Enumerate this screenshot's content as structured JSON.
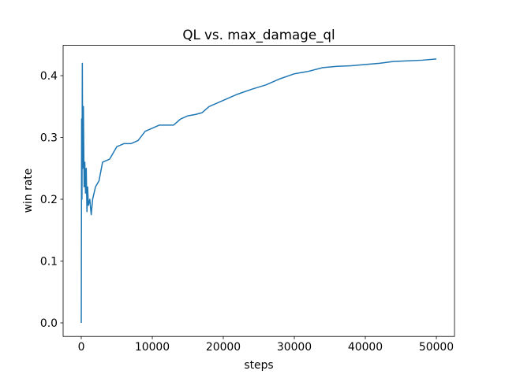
{
  "chart_data": {
    "type": "line",
    "title": "QL vs. max_damage_ql",
    "xlabel": "steps",
    "ylabel": "win rate",
    "x": [
      0,
      50,
      100,
      150,
      200,
      300,
      400,
      500,
      600,
      700,
      800,
      900,
      1000,
      1200,
      1400,
      1600,
      2000,
      2500,
      3000,
      4000,
      5000,
      6000,
      7000,
      8000,
      9000,
      10000,
      11000,
      12000,
      13000,
      14000,
      15000,
      16000,
      17000,
      18000,
      20000,
      22000,
      24000,
      26000,
      28000,
      30000,
      32000,
      34000,
      36000,
      38000,
      40000,
      42000,
      44000,
      46000,
      48000,
      50000
    ],
    "series": [
      {
        "color": "#1f77b4",
        "values": [
          0.0,
          0.33,
          0.2,
          0.42,
          0.25,
          0.35,
          0.22,
          0.26,
          0.21,
          0.25,
          0.18,
          0.22,
          0.19,
          0.2,
          0.175,
          0.2,
          0.22,
          0.23,
          0.26,
          0.265,
          0.285,
          0.29,
          0.29,
          0.295,
          0.31,
          0.315,
          0.32,
          0.32,
          0.32,
          0.33,
          0.335,
          0.337,
          0.34,
          0.35,
          0.36,
          0.37,
          0.378,
          0.385,
          0.395,
          0.403,
          0.407,
          0.413,
          0.415,
          0.416,
          0.418,
          0.42,
          0.423,
          0.424,
          0.425,
          0.427
        ]
      }
    ],
    "xlim": [
      -2555,
      52555
    ],
    "xticks": [
      0,
      10000,
      20000,
      30000,
      40000,
      50000
    ],
    "ylim": [
      -0.0219,
      0.449
    ],
    "yticks": [
      {
        "value": 0,
        "label": "0.0"
      },
      0.1,
      0.2,
      0.3,
      0.4
    ]
  }
}
